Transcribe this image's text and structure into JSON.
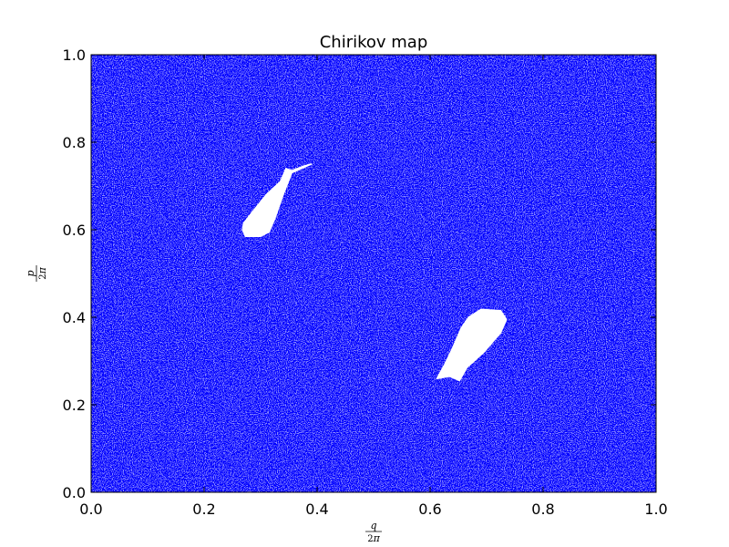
{
  "chart_data": {
    "type": "scatter",
    "title": "Chirikov map",
    "xlabel": {
      "numerator": "q",
      "denominator_digit": "2",
      "denominator_symbol": "π"
    },
    "ylabel": {
      "numerator": "p",
      "denominator_digit": "2",
      "denominator_symbol": "π"
    },
    "xlim": [
      0.0,
      1.0
    ],
    "ylim": [
      0.0,
      1.0
    ],
    "xticks": [
      "0.0",
      "0.2",
      "0.4",
      "0.6",
      "0.8",
      "1.0"
    ],
    "yticks": [
      "0.0",
      "0.2",
      "0.4",
      "0.6",
      "0.8",
      "1.0"
    ],
    "grid": false,
    "point_color": "#0000ff",
    "background_color": "#ffffff",
    "description_series": "chaotic sea of points filling the unit square",
    "islands": [
      {
        "name": "upper-left island",
        "boundary": [
          [
            0.273,
            0.585
          ],
          [
            0.3,
            0.585
          ],
          [
            0.315,
            0.595
          ],
          [
            0.325,
            0.625
          ],
          [
            0.34,
            0.68
          ],
          [
            0.355,
            0.73
          ],
          [
            0.39,
            0.75
          ],
          [
            0.375,
            0.745
          ],
          [
            0.355,
            0.735
          ],
          [
            0.345,
            0.74
          ],
          [
            0.335,
            0.71
          ],
          [
            0.31,
            0.68
          ],
          [
            0.285,
            0.64
          ],
          [
            0.27,
            0.615
          ],
          [
            0.268,
            0.6
          ]
        ]
      },
      {
        "name": "lower-right island",
        "boundary": [
          [
            0.612,
            0.26
          ],
          [
            0.635,
            0.265
          ],
          [
            0.652,
            0.255
          ],
          [
            0.665,
            0.285
          ],
          [
            0.695,
            0.32
          ],
          [
            0.725,
            0.365
          ],
          [
            0.735,
            0.395
          ],
          [
            0.725,
            0.415
          ],
          [
            0.69,
            0.418
          ],
          [
            0.668,
            0.4
          ],
          [
            0.655,
            0.375
          ],
          [
            0.64,
            0.33
          ],
          [
            0.625,
            0.29
          ]
        ]
      }
    ]
  }
}
